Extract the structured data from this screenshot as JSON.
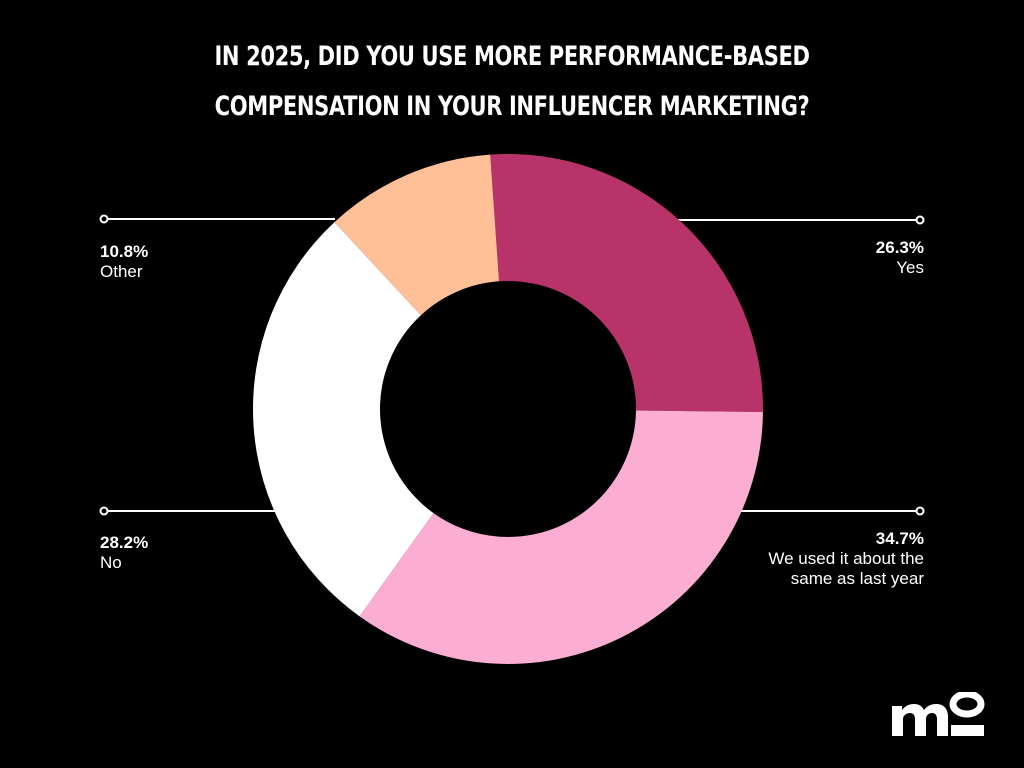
{
  "title": "In 2025, did you use more performance-based compensation in your influencer marketing?",
  "logo": {
    "text": "mo",
    "icon": "mo-logo"
  },
  "chart_data": {
    "type": "pie",
    "donut": true,
    "title": "In 2025, did you use more performance-based compensation in your influencer marketing?",
    "slices": [
      {
        "label": "Yes",
        "value": 26.3,
        "pct_text": "26.3%",
        "color": "#B8336A"
      },
      {
        "label": "We used it about the same as last year",
        "value": 34.7,
        "pct_text": "34.7%",
        "color": "#FBADD3"
      },
      {
        "label": "No",
        "value": 28.2,
        "pct_text": "28.2%",
        "color": "#FFFFFF"
      },
      {
        "label": "Other",
        "value": 10.8,
        "pct_text": "10.8%",
        "color": "#FFC097"
      }
    ],
    "legend": "callout-labels"
  }
}
